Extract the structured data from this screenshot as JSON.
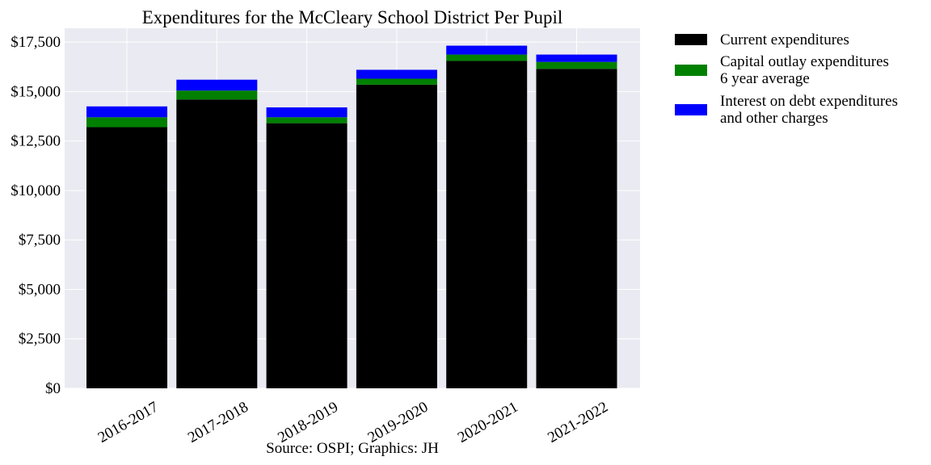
{
  "chart_data": {
    "type": "bar",
    "stacked": true,
    "title": "Expenditures for the McCleary School District Per Pupil",
    "xlabel": "Source: OSPI; Graphics: JH",
    "ylabel": "",
    "categories": [
      "2016-2017",
      "2017-2018",
      "2018-2019",
      "2019-2020",
      "2020-2021",
      "2021-2022"
    ],
    "series": [
      {
        "name": "Current expenditures",
        "color": "#000000",
        "values": [
          13200,
          14600,
          13400,
          15350,
          16550,
          16150
        ]
      },
      {
        "name": "Capital outlay expenditures\n6 year average",
        "color": "#008000",
        "values": [
          500,
          450,
          300,
          300,
          320,
          350
        ]
      },
      {
        "name": "Interest on debt expenditures\nand other charges",
        "color": "#0000ff",
        "values": [
          550,
          550,
          500,
          450,
          450,
          370
        ]
      }
    ],
    "ylim": [
      0,
      18200
    ],
    "yticks": [
      0,
      2500,
      5000,
      7500,
      10000,
      12500,
      15000,
      17500
    ],
    "ytick_labels": [
      "$0",
      "$2,500",
      "$5,000",
      "$7,500",
      "$10,000",
      "$12,500",
      "$15,000",
      "$17,500"
    ],
    "grid": true,
    "legend_position": "outside-right-top",
    "background_color": "#eaeaf2"
  }
}
